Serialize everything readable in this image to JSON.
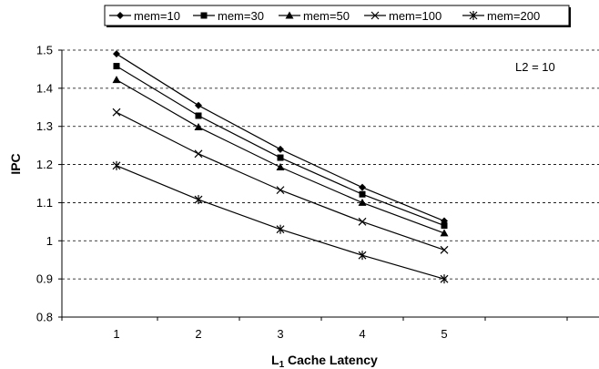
{
  "chart_data": {
    "type": "line",
    "x": [
      1,
      2,
      3,
      4,
      5
    ],
    "series": [
      {
        "name": "mem=10",
        "marker": "diamond",
        "values": [
          1.49,
          1.355,
          1.24,
          1.14,
          1.052
        ]
      },
      {
        "name": "mem=30",
        "marker": "square",
        "values": [
          1.458,
          1.328,
          1.218,
          1.122,
          1.04
        ]
      },
      {
        "name": "mem=50",
        "marker": "triangle",
        "values": [
          1.422,
          1.298,
          1.193,
          1.1,
          1.02
        ]
      },
      {
        "name": "mem=100",
        "marker": "x",
        "values": [
          1.337,
          1.228,
          1.133,
          1.05,
          0.976
        ]
      },
      {
        "name": "mem=200",
        "marker": "star",
        "values": [
          1.197,
          1.108,
          1.03,
          0.962,
          0.9
        ]
      }
    ],
    "xlabel_main": "L",
    "xlabel_sub": "1",
    "xlabel_rest": " Cache Latency",
    "ylabel": "IPC",
    "ylim": [
      0.8,
      1.5
    ],
    "yticks": [
      "0.8",
      "0.9",
      "1",
      "1.1",
      "1.2",
      "1.3",
      "1.4",
      "1.5"
    ],
    "xticks": [
      "1",
      "2",
      "3",
      "4",
      "5"
    ],
    "annotation": "L2 = 10",
    "grid": "horizontal dashed",
    "legend_position": "top",
    "line_color": "#000000"
  }
}
